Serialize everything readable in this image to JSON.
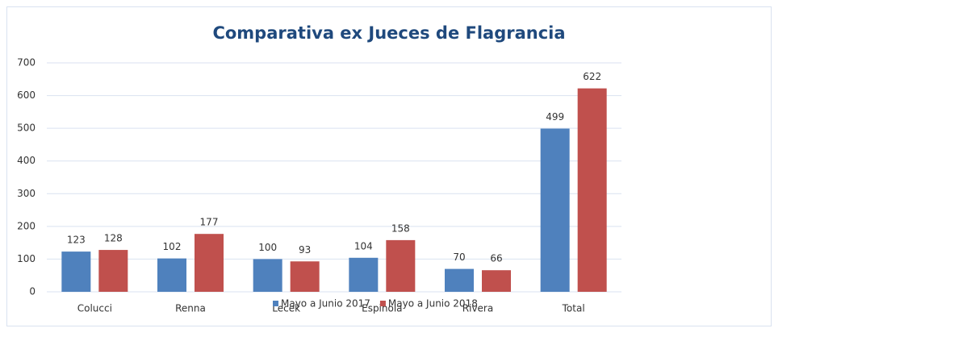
{
  "chart_data": {
    "type": "bar",
    "title": "Comparativa ex Jueces de Flagrancia",
    "categories": [
      "Colucci",
      "Renna",
      "Lecek",
      "Espinola",
      "Rivera",
      "Total"
    ],
    "series": [
      {
        "name": "Mayo a Junio 2017",
        "color": "#4f81bd",
        "values": [
          123,
          102,
          100,
          104,
          70,
          499
        ]
      },
      {
        "name": "Mayo a Junio 2018",
        "color": "#c0504d",
        "values": [
          128,
          177,
          93,
          158,
          66,
          622
        ]
      }
    ],
    "ylim": [
      0,
      700
    ],
    "yticks": [
      0,
      100,
      200,
      300,
      400,
      500,
      600,
      700
    ],
    "grid": true,
    "legend": "bottom"
  }
}
